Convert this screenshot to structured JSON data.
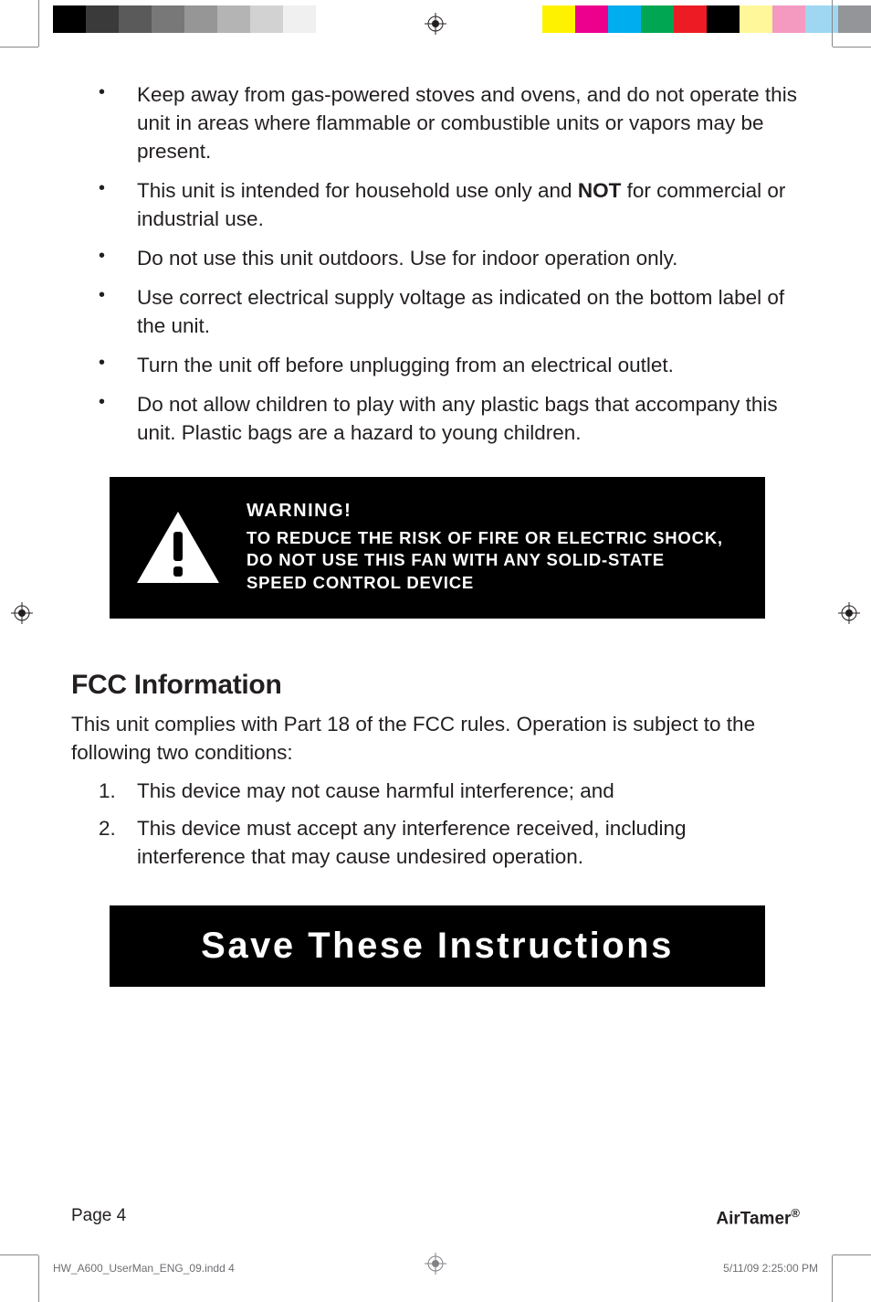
{
  "print_marks": {
    "grayscale_swatches": [
      "#000000",
      "#3a3a3a",
      "#5a5a5a",
      "#787878",
      "#969696",
      "#b4b4b4",
      "#d2d2d2",
      "#f0f0f0"
    ],
    "color_swatches": [
      "#fff200",
      "#ec008c",
      "#00aeef",
      "#00a651",
      "#ed1c24",
      "#000000",
      "#fff799",
      "#f49ac1",
      "#9fd7f2",
      "#939598"
    ]
  },
  "bullets": [
    {
      "text_before": "Keep away from gas-powered stoves and ovens, and do not operate this unit in areas where flammable or combustible units or vapors may be present.",
      "bold": "",
      "text_after": ""
    },
    {
      "text_before": "This unit is intended for household use only and ",
      "bold": "NOT",
      "text_after": " for commercial or industrial use."
    },
    {
      "text_before": "Do not use this unit outdoors. Use for indoor operation only.",
      "bold": "",
      "text_after": ""
    },
    {
      "text_before": "Use correct electrical supply voltage as indicated on the bottom label of the unit.",
      "bold": "",
      "text_after": ""
    },
    {
      "text_before": "Turn the unit off before unplugging from an electrical outlet.",
      "bold": "",
      "text_after": ""
    },
    {
      "text_before": "Do not allow children to play with any plastic bags that accompany this unit. Plastic bags are a hazard to young children.",
      "bold": "",
      "text_after": ""
    }
  ],
  "warning": {
    "title": "WARNING!",
    "body": "TO REDUCE THE RISK OF FIRE OR ELECTRIC SHOCK, DO NOT USE THIS FAN WITH ANY SOLID-STATE SPEED CONTROL DEVICE"
  },
  "fcc": {
    "heading": "FCC Information",
    "intro": "This unit complies with Part 18 of the FCC rules. Operation is subject to the following two conditions:",
    "items": [
      "This device may not cause harmful interference; and",
      "This device must accept any interference received, including interference that may cause undesired operation."
    ]
  },
  "save_banner": "Save These Instructions",
  "footer": {
    "page": "Page 4",
    "brand": "AirTamer",
    "reg": "®"
  },
  "slug": {
    "file": "HW_A600_UserMan_ENG_09.indd   4",
    "datetime": "5/11/09   2:25:00 PM"
  }
}
